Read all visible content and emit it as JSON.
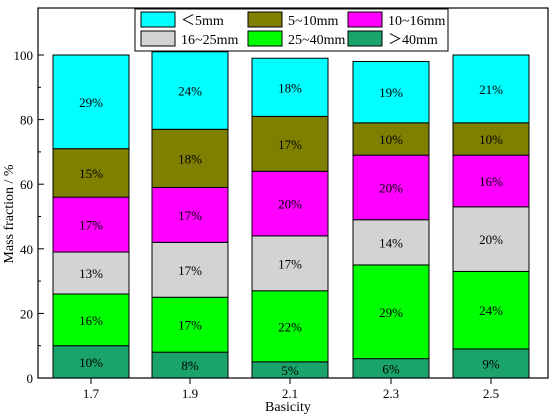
{
  "chart_data": {
    "type": "bar",
    "stacked": true,
    "xlabel": "Basicity",
    "ylabel": "Mass fraction / %",
    "ylim": [
      0,
      100
    ],
    "yticks": [
      0,
      20,
      40,
      60,
      80,
      100
    ],
    "categories": [
      "1.7",
      "1.9",
      "2.1",
      "2.3",
      "2.5"
    ],
    "legend_position": "top, inside plot, 3 columns",
    "series": [
      {
        "name": "＞40mm",
        "color": "#1aa36b",
        "values": [
          10,
          8,
          5,
          6,
          9
        ],
        "labels": [
          "10%",
          "8%",
          "5%",
          "6%",
          "9%"
        ]
      },
      {
        "name": "25~40mm",
        "color": "#00ff00",
        "values": [
          16,
          17,
          22,
          29,
          24
        ],
        "labels": [
          "16%",
          "17%",
          "22%",
          "29%",
          "24%"
        ]
      },
      {
        "name": "16~25mm",
        "color": "#d3d3d3",
        "values": [
          13,
          17,
          17,
          14,
          20
        ],
        "labels": [
          "13%",
          "17%",
          "17%",
          "14%",
          "20%"
        ]
      },
      {
        "name": "10~16mm",
        "color": "#ff00ff",
        "values": [
          17,
          17,
          20,
          20,
          16
        ],
        "labels": [
          "17%",
          "17%",
          "20%",
          "20%",
          "16%"
        ]
      },
      {
        "name": "5~10mm",
        "color": "#808000",
        "values": [
          15,
          18,
          17,
          10,
          10
        ],
        "labels": [
          "15%",
          "18%",
          "17%",
          "10%",
          "10%"
        ]
      },
      {
        "name": "＜5mm",
        "color": "#00ffff",
        "values": [
          29,
          24,
          18,
          19,
          21
        ],
        "labels": [
          "29%",
          "24%",
          "18%",
          "19%",
          "21%"
        ]
      }
    ],
    "legend_order": [
      "＜5mm",
      "5~10mm",
      "10~16mm",
      "16~25mm",
      "25~40mm",
      "＞40mm"
    ]
  }
}
